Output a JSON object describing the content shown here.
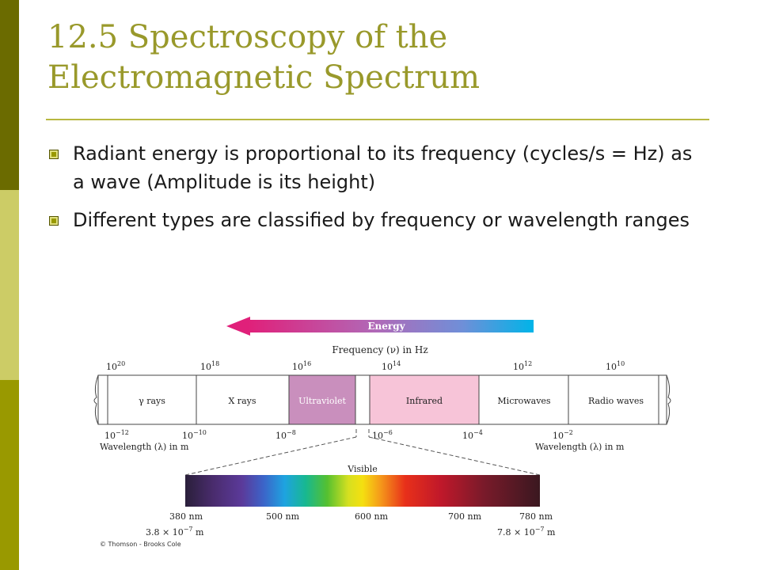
{
  "slide": {
    "title_line1": "12.5 Spectroscopy of the",
    "title_line2": "Electromagnetic Spectrum",
    "bullets": [
      "Radiant energy is proportional to its frequency (cycles/s = Hz) as a wave (Amplitude is its height)",
      "Different types are classified by frequency or wavelength ranges"
    ],
    "colors": {
      "sidebar_dark": "#6b6b00",
      "sidebar_light": "#cccc66",
      "sidebar_mid": "#999900",
      "title": "#99992b"
    }
  },
  "figure": {
    "energy_label": "Energy",
    "frequency_label": "Frequency (ν) in Hz",
    "frequency_ticks": [
      "10",
      "10",
      "10",
      "10",
      "10",
      "10"
    ],
    "frequency_exponents": [
      "20",
      "18",
      "16",
      "14",
      "12",
      "10"
    ],
    "bands": [
      "γ rays",
      "X rays",
      "Ultraviolet",
      "Infrared",
      "Microwaves",
      "Radio waves"
    ],
    "wavelength_ticks": [
      "10",
      "10",
      "10",
      "10",
      "10",
      "10"
    ],
    "wavelength_exponents": [
      "−12",
      "−10",
      "−8",
      "−6",
      "−4",
      "−2"
    ],
    "wavelength_label_left": "Wavelength (λ) in m",
    "wavelength_label_right": "Wavelength (λ) in m",
    "visible_label": "Visible",
    "nm_ticks": [
      "380 nm",
      "500 nm",
      "600 nm",
      "700 nm",
      "780 nm"
    ],
    "visible_min": "3.8 × 10",
    "visible_min_exp": "−7",
    "visible_min_unit": "m",
    "visible_max": "7.8 × 10",
    "visible_max_exp": "−7",
    "visible_max_unit": "m",
    "copyright": "© Thomson - Brooks Cole",
    "colors": {
      "ultraviolet": "#c98fbd",
      "infrared": "#f7c4d8"
    }
  }
}
